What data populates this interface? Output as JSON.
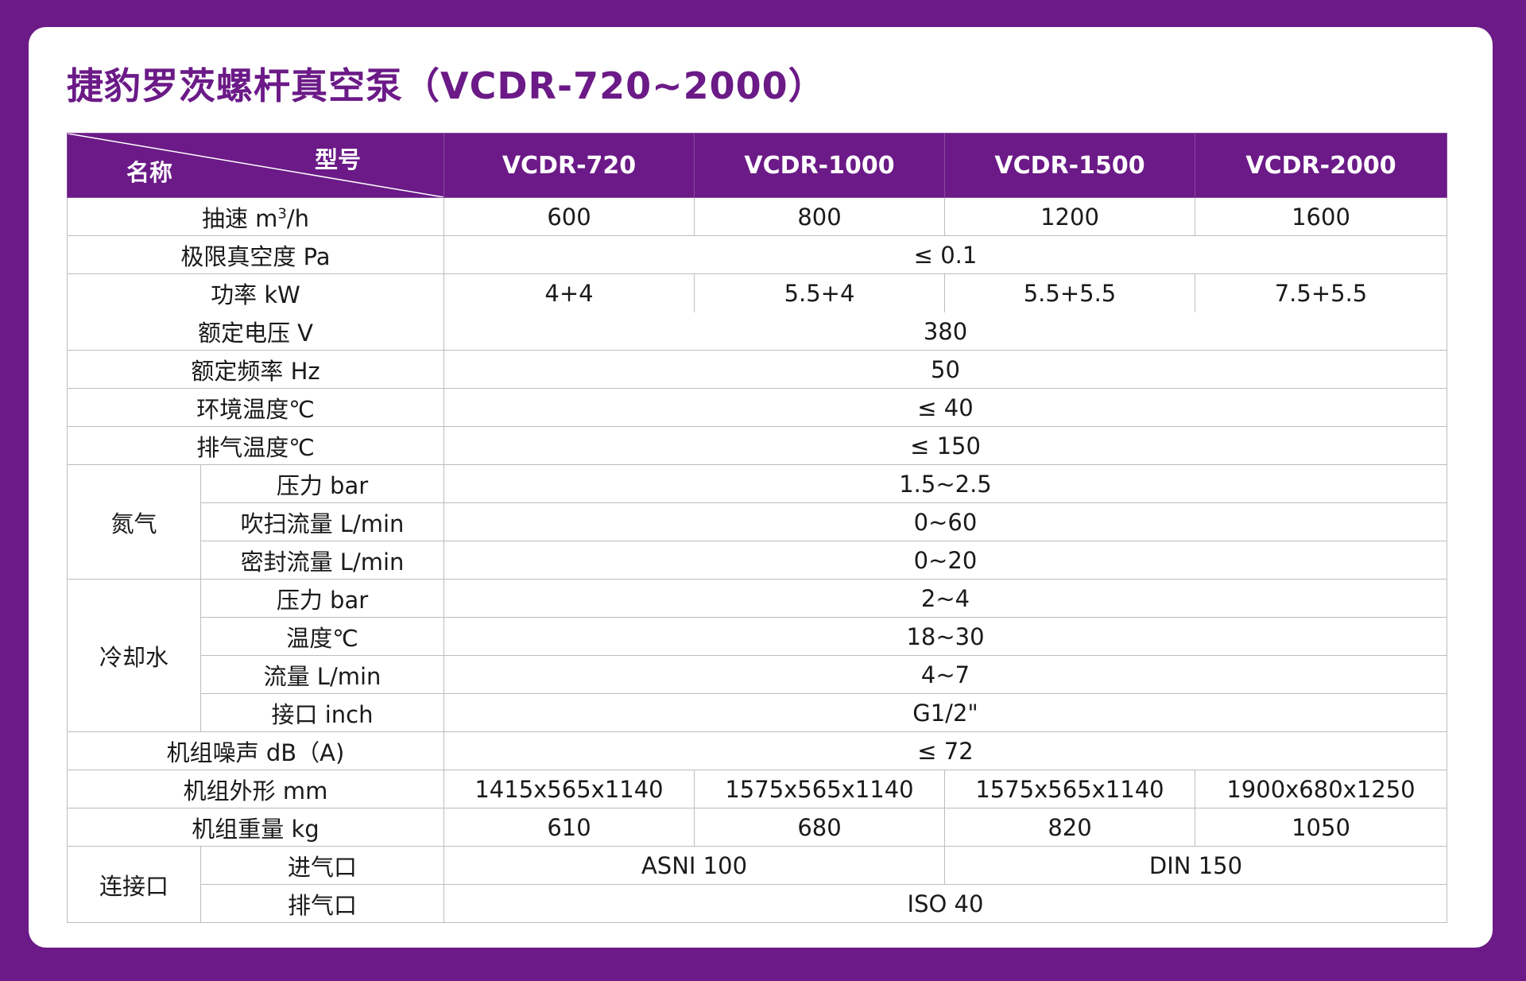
{
  "title": "捷豹罗茨螺杆真空泵（VCDR-720~2000）",
  "header": {
    "name_label": "名称",
    "model_label": "型号",
    "models": [
      "VCDR-720",
      "VCDR-1000",
      "VCDR-1500",
      "VCDR-2000"
    ]
  },
  "rows": {
    "speed": {
      "label_pre": "抽速 m",
      "label_sup": "3",
      "label_post": "/h",
      "values": [
        "600",
        "800",
        "1200",
        "1600"
      ]
    },
    "ultimate_vacuum": {
      "label": "极限真空度 Pa",
      "value": "≤ 0.1"
    },
    "power": {
      "label": "功率 kW",
      "values": [
        "4+4",
        "5.5+4",
        "5.5+5.5",
        "7.5+5.5"
      ]
    },
    "voltage": {
      "label": "额定电压 V",
      "value": "380"
    },
    "frequency": {
      "label": "额定频率 Hz",
      "value": "50"
    },
    "ambient_temp": {
      "label": "环境温度℃",
      "value": "≤ 40"
    },
    "exhaust_temp": {
      "label": "排气温度℃",
      "value": "≤ 150"
    },
    "nitrogen": {
      "group": "氮气",
      "pressure": {
        "label": "压力 bar",
        "value": "1.5~2.5"
      },
      "purge_flow": {
        "label": "吹扫流量 L/min",
        "value": "0~60"
      },
      "seal_flow": {
        "label": "密封流量 L/min",
        "value": "0~20"
      }
    },
    "cooling_water": {
      "group": "冷却水",
      "pressure": {
        "label": "压力 bar",
        "value": "2~4"
      },
      "temperature": {
        "label": "温度℃",
        "value": "18~30"
      },
      "flow": {
        "label": "流量 L/min",
        "value": "4~7"
      },
      "port": {
        "label": "接口 inch",
        "value": "G1/2\""
      }
    },
    "noise": {
      "label": "机组噪声 dB（A)",
      "value": "≤ 72"
    },
    "dimensions": {
      "label": "机组外形 mm",
      "values": [
        "1415x565x1140",
        "1575x565x1140",
        "1575x565x1140",
        "1900x680x1250"
      ]
    },
    "weight": {
      "label": "机组重量 kg",
      "values": [
        "610",
        "680",
        "820",
        "1050"
      ]
    },
    "connection": {
      "group": "连接口",
      "inlet": {
        "label": "进气口",
        "left": "ASNI 100",
        "right": "DIN 150"
      },
      "outlet": {
        "label": "排气口",
        "value": "ISO 40"
      }
    }
  },
  "colors": {
    "brand": "#6b1a87",
    "background": "#ffffff",
    "grid": "#bdbdbd"
  }
}
